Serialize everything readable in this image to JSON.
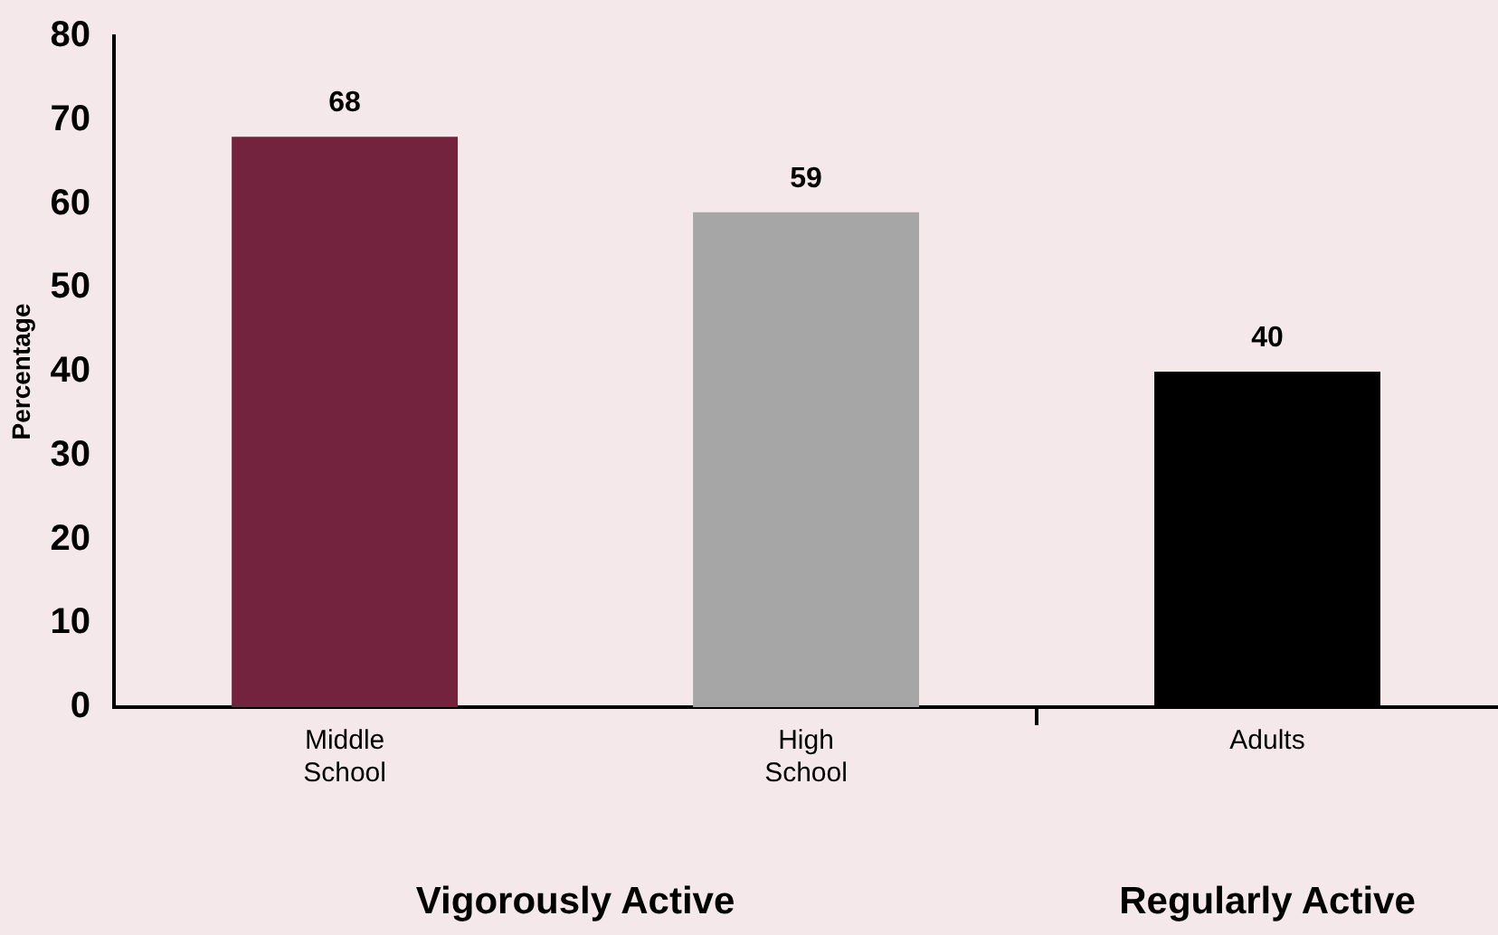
{
  "chart_data": {
    "type": "bar",
    "ylabel": "Percentage",
    "categories": [
      "Middle School",
      "High School",
      "Adults"
    ],
    "values": [
      68,
      59,
      40
    ],
    "colors": [
      "#74233f",
      "#a6a6a6",
      "#000000"
    ],
    "ylim": [
      0,
      80
    ],
    "yticks": [
      0,
      10,
      20,
      30,
      40,
      50,
      60,
      70,
      80
    ],
    "grid": false,
    "legend": false,
    "data_labels": true,
    "annotations": [
      "Vigorously Active",
      "Regularly Active"
    ]
  }
}
